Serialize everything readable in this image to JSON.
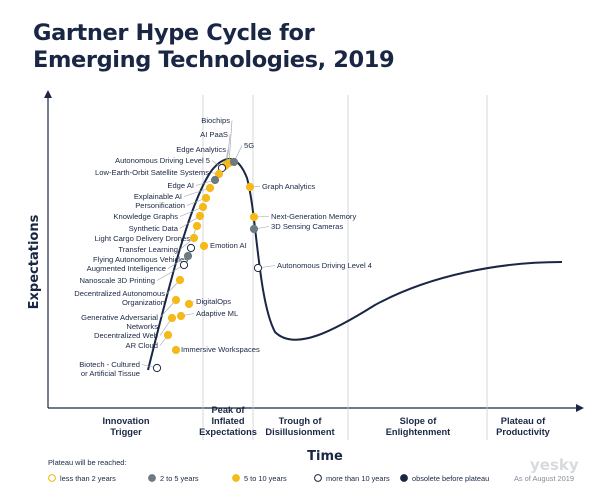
{
  "title": {
    "line1": "Gartner Hype Cycle for",
    "line2": "Emerging Technologies, 2019"
  },
  "axes": {
    "y": "Expectations",
    "x": "Time"
  },
  "phases": [
    {
      "lines": [
        "Innovation",
        "Trigger"
      ]
    },
    {
      "lines": [
        "Peak of",
        "Inflated",
        "Expectations"
      ]
    },
    {
      "lines": [
        "Trough of",
        "Disillusionment"
      ]
    },
    {
      "lines": [
        "Slope of",
        "Enlightenment"
      ]
    },
    {
      "lines": [
        "Plateau of",
        "Productivity"
      ]
    }
  ],
  "legend": {
    "heading": "Plateau will be reached:",
    "items": [
      {
        "label": "less than 2 years",
        "fill": "#ffffff",
        "stroke": "#f2b705"
      },
      {
        "label": "2 to 5 years",
        "fill": "#6e7a82",
        "stroke": "#6e7a82"
      },
      {
        "label": "5 to 10 years",
        "fill": "#f5b919",
        "stroke": "#f5b919"
      },
      {
        "label": "more than 10 years",
        "fill": "#ffffff",
        "stroke": "#1a2744"
      },
      {
        "label": "obsolete before plateau",
        "fill": "#1a2744",
        "stroke": "#1a2744"
      }
    ],
    "date": "As of August 2019"
  },
  "watermark": "yesky",
  "colors": {
    "navy": "#1a2744",
    "yellow": "#f5b919",
    "gray": "#6e7a82",
    "divider": "#c9cdd3"
  },
  "technologies": [
    {
      "name": "Biochips",
      "status": "5 to 10 years"
    },
    {
      "name": "AI PaaS",
      "status": "5 to 10 years"
    },
    {
      "name": "Edge Analytics",
      "status": "5 to 10 years"
    },
    {
      "name": "Autonomous Driving Level 5",
      "status": "more than 10 years"
    },
    {
      "name": "Low-Earth-Orbit Satellite Systems",
      "status": "5 to 10 years"
    },
    {
      "name": "Edge AI",
      "status": "2 to 5 years"
    },
    {
      "name": "Explainable AI",
      "status": "5 to 10 years"
    },
    {
      "name": "Personification",
      "status": "5 to 10 years"
    },
    {
      "name": "Knowledge Graphs",
      "status": "5 to 10 years"
    },
    {
      "name": "Synthetic Data",
      "status": "5 to 10 years"
    },
    {
      "name": "Light Cargo Delivery Drones",
      "status": "5 to 10 years"
    },
    {
      "name": "Transfer Learning",
      "status": "5 to 10 years"
    },
    {
      "name": "Flying Autonomous Vehicles",
      "status": "more than 10 years"
    },
    {
      "name": "Augmented Intelligence",
      "status": "2 to 5 years"
    },
    {
      "name": "Nanoscale 3D Printing",
      "status": "more than 10 years"
    },
    {
      "name": "Decentralized Autonomous Organization",
      "status": "5 to 10 years"
    },
    {
      "name": "Generative Adversarial Networks",
      "status": "5 to 10 years"
    },
    {
      "name": "Decentralized Web",
      "status": "5 to 10 years"
    },
    {
      "name": "AR Cloud",
      "status": "5 to 10 years"
    },
    {
      "name": "Biotech - Cultured or Artificial Tissue",
      "status": "more than 10 years"
    },
    {
      "name": "5G",
      "status": "2 to 5 years"
    },
    {
      "name": "Graph Analytics",
      "status": "5 to 10 years"
    },
    {
      "name": "Emotion AI",
      "status": "5 to 10 years"
    },
    {
      "name": "DigitalOps",
      "status": "5 to 10 years"
    },
    {
      "name": "Adaptive ML",
      "status": "5 to 10 years"
    },
    {
      "name": "Immersive Workspaces",
      "status": "5 to 10 years"
    },
    {
      "name": "Next-Generation Memory",
      "status": "5 to 10 years"
    },
    {
      "name": "3D Sensing Cameras",
      "status": "2 to 5 years"
    },
    {
      "name": "Autonomous Driving Level 4",
      "status": "more than 10 years"
    }
  ]
}
